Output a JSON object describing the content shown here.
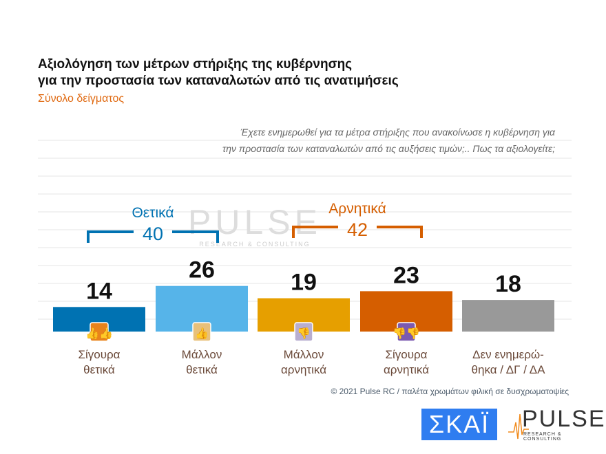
{
  "title_line1": "Αξιολόγηση των μέτρων στήριξης της κυβέρνησης",
  "title_line2": "για την προστασία των καταναλωτών από τις ανατιμήσεις",
  "subtitle": "Σύνολο δείγματος",
  "question_line1": "Έχετε ενημερωθεί για τα μέτρα στήριξης που ανακοίνωσε η κυβέρνηση για",
  "question_line2": "την προστασία των καταναλωτών από τις αυξήσεις τιμών;.. Πως τα αξιολογείτε;",
  "footer": "© 2021 Pulse RC  /  παλέτα χρωμάτων φιλική σε δυσχρωματοψίες",
  "logos": {
    "skai": "ΣΚΑΪ",
    "pulse": "PULSE",
    "pulse_tag": "RESEARCH & CONSULTING"
  },
  "chart_data": {
    "type": "bar",
    "categories": [
      [
        "Σίγουρα",
        "θετικά"
      ],
      [
        "Μάλλον",
        "θετικά"
      ],
      [
        "Μάλλον",
        "αρνητικά"
      ],
      [
        "Σίγουρα",
        "αρνητικά"
      ],
      [
        "Δεν ενημερώ-",
        "θηκα / ΔΓ / ΔΑ"
      ]
    ],
    "values": [
      14,
      26,
      19,
      23,
      18
    ],
    "colors": [
      "#0072b2",
      "#56b4e9",
      "#e69f00",
      "#d55e00",
      "#999999"
    ],
    "icons": [
      "double-thumbs-up-icon",
      "thumbs-up-icon",
      "thumbs-down-icon",
      "double-thumbs-down-icon",
      null
    ],
    "icon_colors": [
      "#e8831c",
      "#e8c07a",
      "#b8aed0",
      "#7b5ab0",
      null
    ],
    "groups": [
      {
        "label": "Θετικά",
        "total": "40",
        "color": "#0072b2"
      },
      {
        "label": "Αρνητικά",
        "total": "42",
        "color": "#d55e00"
      }
    ],
    "ylim": [
      0,
      40
    ],
    "grid": true
  }
}
